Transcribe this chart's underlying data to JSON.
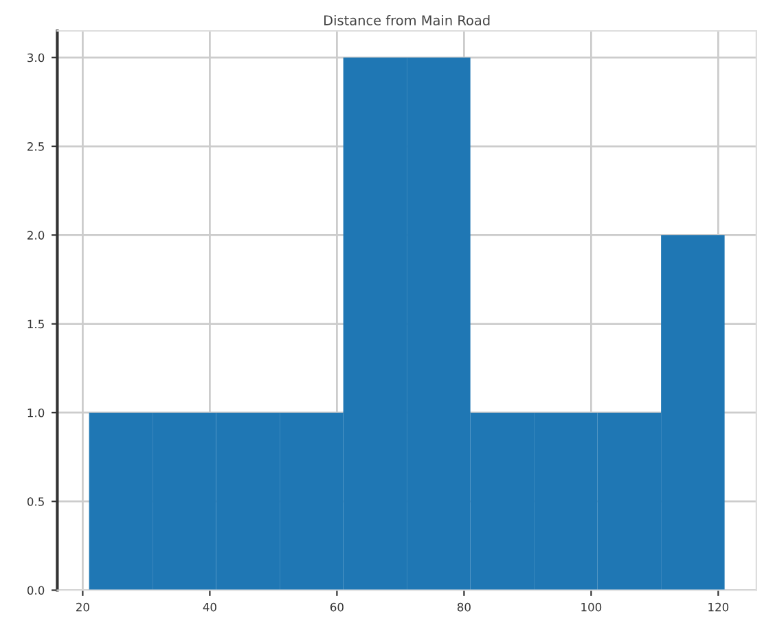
{
  "chart_data": {
    "type": "histogram",
    "title": "Distance from Main Road",
    "bins": [
      21,
      31,
      41,
      51,
      61,
      71,
      81,
      91,
      101,
      111,
      121
    ],
    "values": [
      1,
      1,
      1,
      1,
      3,
      3,
      1,
      1,
      1,
      2
    ],
    "color": "#1f77b4",
    "xlim": [
      16,
      126
    ],
    "ylim": [
      0,
      3.15
    ],
    "xticks": [
      20,
      40,
      60,
      80,
      100,
      120
    ],
    "yticks": [
      {
        "value": 0,
        "label": "0.0"
      },
      {
        "value": 0.5,
        "label": "0.5"
      },
      {
        "value": 1,
        "label": "1.0"
      },
      {
        "value": 1.5,
        "label": "1.5"
      },
      {
        "value": 2,
        "label": "2.0"
      },
      {
        "value": 2.5,
        "label": "2.5"
      },
      {
        "value": 3,
        "label": "3.0"
      }
    ],
    "grid": true
  }
}
